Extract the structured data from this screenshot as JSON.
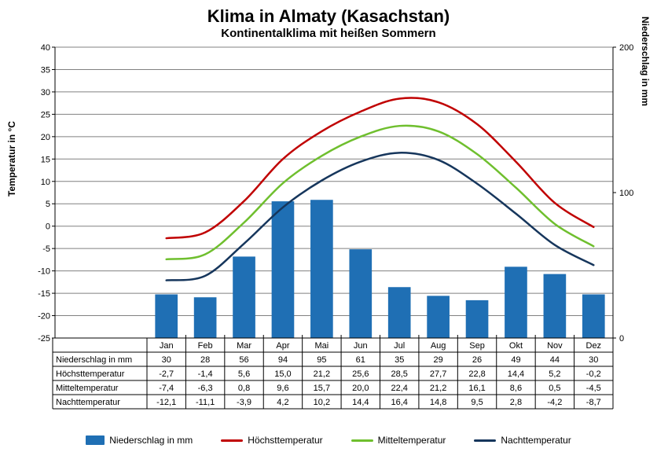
{
  "title": "Klima in Almaty (Kasachstan)",
  "subtitle": "Kontinentalklima mit heißen Sommern",
  "y_left_label": "Temperatur in °C",
  "y_right_label": "Niederschlag in mm",
  "chart": {
    "type": "combo-bar-line",
    "background_color": "#ffffff",
    "grid_color": "#808080",
    "axis_color": "#000000",
    "font_family": "Arial",
    "title_fontsize": 22,
    "subtitle_fontsize": 15,
    "axis_label_fontsize": 12,
    "tick_fontsize": 11,
    "table_fontsize": 11,
    "categories": [
      "Jan",
      "Feb",
      "Mar",
      "Apr",
      "Mai",
      "Jun",
      "Jul",
      "Aug",
      "Sep",
      "Okt",
      "Nov",
      "Dez"
    ],
    "y_left": {
      "min": -25,
      "max": 40,
      "step": 5
    },
    "y_right": {
      "min": 0,
      "max": 200,
      "step": 100
    },
    "bar_series": {
      "name": "Niederschlag in mm",
      "color": "#1f6fb4",
      "values": [
        30,
        28,
        56,
        94,
        95,
        61,
        35,
        29,
        26,
        49,
        44,
        30
      ],
      "bar_width_ratio": 0.58
    },
    "line_series": [
      {
        "name": "Höchsttemperatur",
        "color": "#c00000",
        "width": 2.5,
        "values": [
          -2.7,
          -1.4,
          5.6,
          15.0,
          21.2,
          25.6,
          28.5,
          27.7,
          22.8,
          14.4,
          5.2,
          -0.2
        ]
      },
      {
        "name": "Mitteltemperatur",
        "color": "#6fbf2e",
        "width": 2.5,
        "values": [
          -7.4,
          -6.3,
          0.8,
          9.6,
          15.7,
          20.0,
          22.4,
          21.2,
          16.1,
          8.6,
          0.5,
          -4.5
        ]
      },
      {
        "name": "Nachttemperatur",
        "color": "#16365c",
        "width": 2.5,
        "values": [
          -12.1,
          -11.1,
          -3.9,
          4.2,
          10.2,
          14.4,
          16.4,
          14.8,
          9.5,
          2.8,
          -4.2,
          -8.7
        ]
      }
    ],
    "table_rows": [
      {
        "label": "Niederschlag in mm",
        "values": [
          "30",
          "28",
          "56",
          "94",
          "95",
          "61",
          "35",
          "29",
          "26",
          "49",
          "44",
          "30"
        ]
      },
      {
        "label": "Höchsttemperatur",
        "values": [
          "-2,7",
          "-1,4",
          "5,6",
          "15,0",
          "21,2",
          "25,6",
          "28,5",
          "27,7",
          "22,8",
          "14,4",
          "5,2",
          "-0,2"
        ]
      },
      {
        "label": "Mitteltemperatur",
        "values": [
          "-7,4",
          "-6,3",
          "0,8",
          "9,6",
          "15,7",
          "20,0",
          "22,4",
          "21,2",
          "16,1",
          "8,6",
          "0,5",
          "-4,5"
        ]
      },
      {
        "label": "Nachttemperatur",
        "values": [
          "-12,1",
          "-11,1",
          "-3,9",
          "4,2",
          "10,2",
          "14,4",
          "16,4",
          "14,8",
          "9,5",
          "2,8",
          "-4,2",
          "-8,7"
        ]
      }
    ]
  },
  "legend": [
    {
      "type": "bar",
      "color": "#1f6fb4",
      "label": "Niederschlag in mm"
    },
    {
      "type": "line",
      "color": "#c00000",
      "label": "Höchsttemperatur"
    },
    {
      "type": "line",
      "color": "#6fbf2e",
      "label": "Mitteltemperatur"
    },
    {
      "type": "line",
      "color": "#16365c",
      "label": "Nachttemperatur"
    }
  ]
}
